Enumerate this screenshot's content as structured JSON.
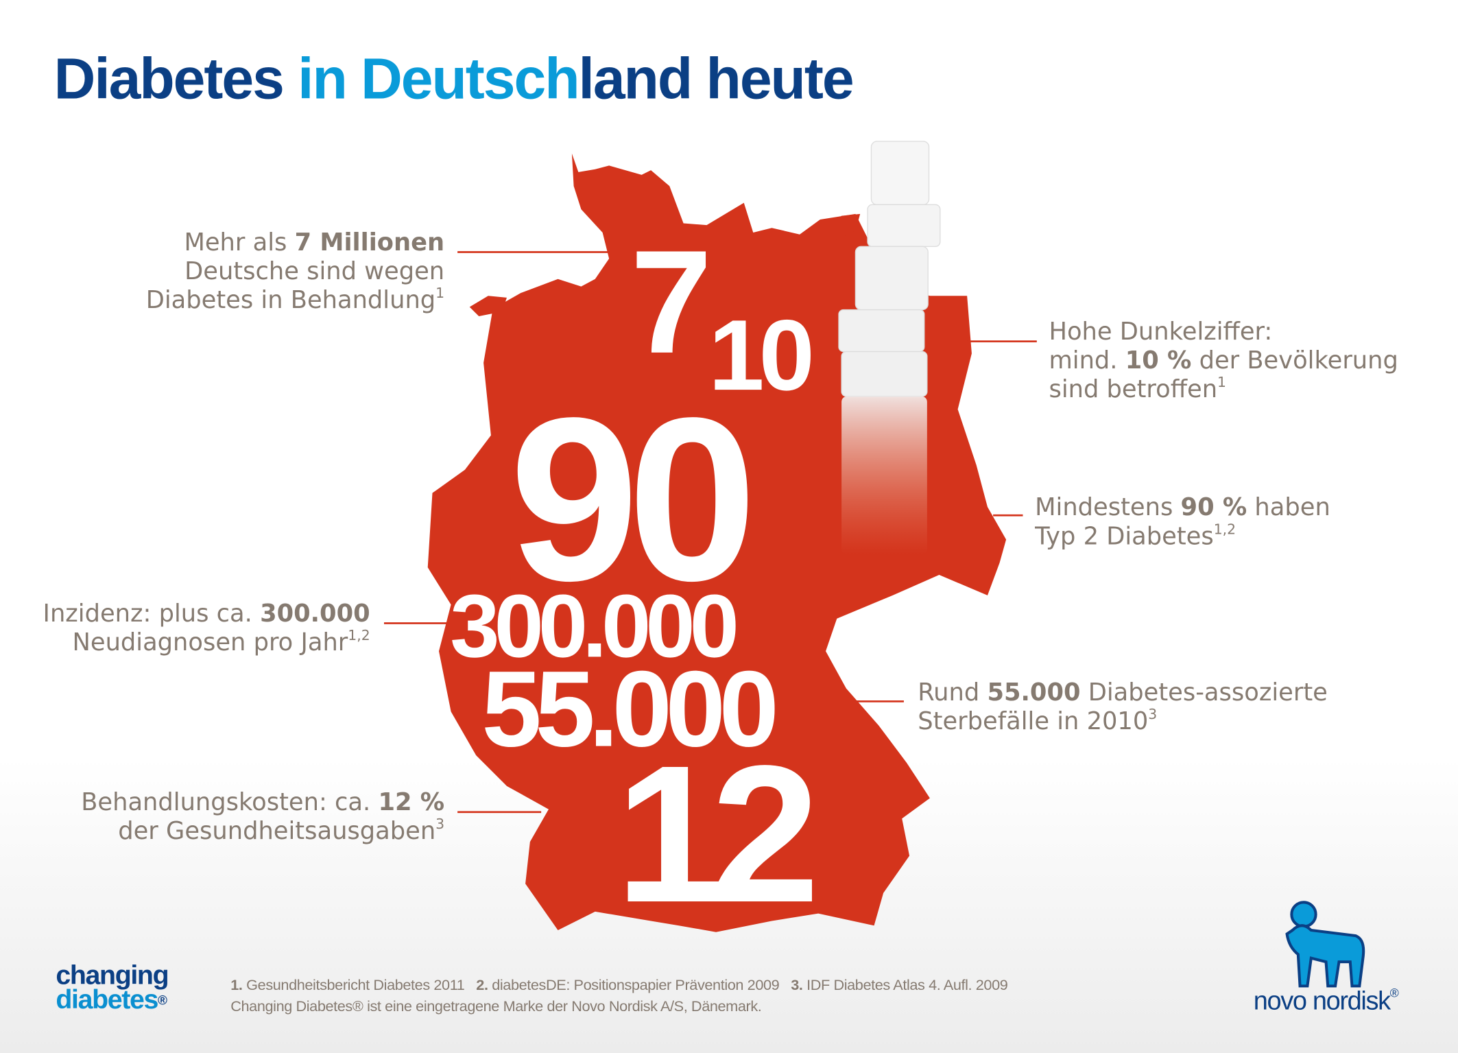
{
  "title": {
    "part1": "Diabetes ",
    "part2": "in Deutsch",
    "part3": "land heute"
  },
  "colors": {
    "map_red": "#d4341c",
    "title_dark_blue": "#0b3f84",
    "title_light_blue": "#0a9bd9",
    "label_grey": "#857a70"
  },
  "big_numbers": {
    "seven": "7",
    "ten": "10",
    "ninety": "90",
    "incidence": "300.000",
    "deaths": "55.000",
    "costs": "12"
  },
  "labels": {
    "millions": {
      "l1_pre": "Mehr als ",
      "l1_bold": "7 Millionen",
      "l2": "Deutsche sind wegen",
      "l3": "Diabetes in Behandlung",
      "sup": "1"
    },
    "dark_figure": {
      "l1": "Hohe Dunkelziffer:",
      "l2_pre": "mind. ",
      "l2_bold": "10 %",
      "l2_post": " der Bevölkerung",
      "l3": "sind betroffen",
      "sup": "1"
    },
    "type2": {
      "l1_pre": "Mindestens ",
      "l1_bold": "90 %",
      "l1_post": " haben",
      "l2": "Typ 2 Diabetes",
      "sup": "1,2"
    },
    "incidence": {
      "l1_pre": "Inzidenz: plus ca. ",
      "l1_bold": "300.000",
      "l2": "Neudiagnosen pro Jahr",
      "sup": "1,2"
    },
    "deaths": {
      "l1_pre": "Rund ",
      "l1_bold": "55.000",
      "l1_post": " Diabetes-assozierte",
      "l2": "Sterbefälle in 2010",
      "sup": "3"
    },
    "costs": {
      "l1_pre": "Behandlungskosten: ca. ",
      "l1_bold": "12 %",
      "l2": "der Gesundheitsausgaben",
      "sup": "3"
    }
  },
  "footer": {
    "refs": [
      {
        "num": "1.",
        "text": "Gesundheitsbericht Diabetes 2011"
      },
      {
        "num": "2.",
        "text": "diabetesDE: Positionspapier Prävention 2009"
      },
      {
        "num": "3.",
        "text": "IDF Diabetes Atlas 4. Aufl. 2009"
      }
    ],
    "trademark": "Changing Diabetes® ist eine eingetragene Marke der Novo Nordisk A/S, Dänemark."
  },
  "logos": {
    "changing_diabetes": {
      "l1": "changing",
      "l2": "diabetes",
      "reg": "®"
    },
    "novo_nordisk": {
      "text": "novo nordisk",
      "reg": "®"
    }
  }
}
